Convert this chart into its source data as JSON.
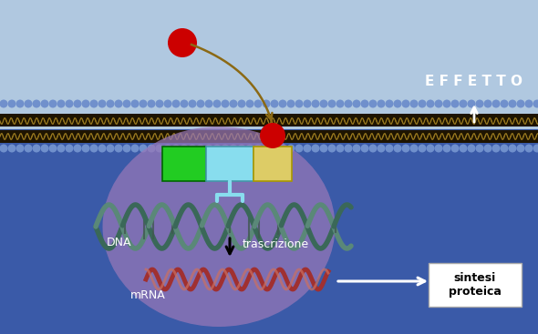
{
  "fig_width": 5.9,
  "fig_height": 3.67,
  "dpi": 100,
  "bg_top_color": "#b0c8e0",
  "bg_bottom_color": "#3a5aa8",
  "membrane_dark_color": "#1a1200",
  "membrane_head_color": "#7090cc",
  "membrane_wave_color": "#9a7a20",
  "nucleus_color": "#9878b8",
  "nucleus_alpha": 0.72,
  "hormone_color": "#cc0000",
  "green_box_color": "#22cc22",
  "green_box_edge": "#006600",
  "cyan_box_color": "#88ddee",
  "cyan_box_edge": "#4499aa",
  "yellow_box_color": "#ddcc66",
  "yellow_box_edge": "#aa9900",
  "dna_color1": "#3a6858",
  "dna_color2": "#5a8878",
  "dna_link_color": "#405850",
  "mrna_color1": "#a03030",
  "mrna_color2": "#cc7060",
  "arrow_curve_color": "#8B6914",
  "text_effetto": "E F F E T T O",
  "text_dna": "DNA",
  "text_mrna": "mRNA",
  "text_trascrizione": "trascrizione",
  "text_sintesi": "sintesi\nproteica"
}
